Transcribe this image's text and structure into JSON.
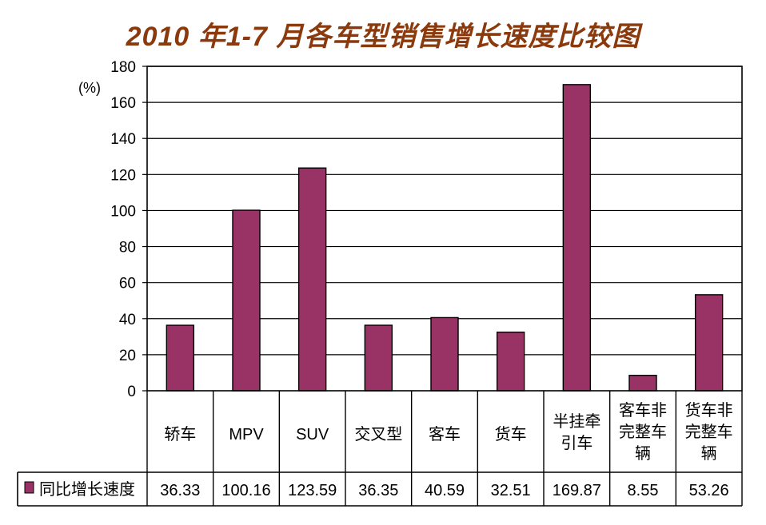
{
  "title": "2010 年1-7 月各车型销售增长速度比较图",
  "chart_data": {
    "type": "bar",
    "title": "2010 年1-7 月各车型销售增长速度比较图",
    "ylabel": "(%)",
    "xlabel": "",
    "ylim": [
      0,
      180
    ],
    "yticks": [
      0,
      20,
      40,
      60,
      80,
      100,
      120,
      140,
      160,
      180
    ],
    "grid": true,
    "legend_placement": "bottom-left (data table)",
    "categories": [
      [
        "轿车"
      ],
      [
        "MPV"
      ],
      [
        "SUV"
      ],
      [
        "交叉型"
      ],
      [
        "客车"
      ],
      [
        "货车"
      ],
      [
        "半挂牵",
        "引车"
      ],
      [
        "客车非",
        "完整车",
        "辆"
      ],
      [
        "货车非",
        "完整车",
        "辆"
      ]
    ],
    "series": [
      {
        "name": "同比增长速度",
        "color": "#993366",
        "values": [
          36.33,
          100.16,
          123.59,
          36.35,
          40.59,
          32.51,
          169.87,
          8.55,
          53.26
        ],
        "labels": [
          "36.33",
          "100.16",
          "123.59",
          "36.35",
          "40.59",
          "32.51",
          "169.87",
          "8.55",
          "53.26"
        ]
      }
    ]
  }
}
